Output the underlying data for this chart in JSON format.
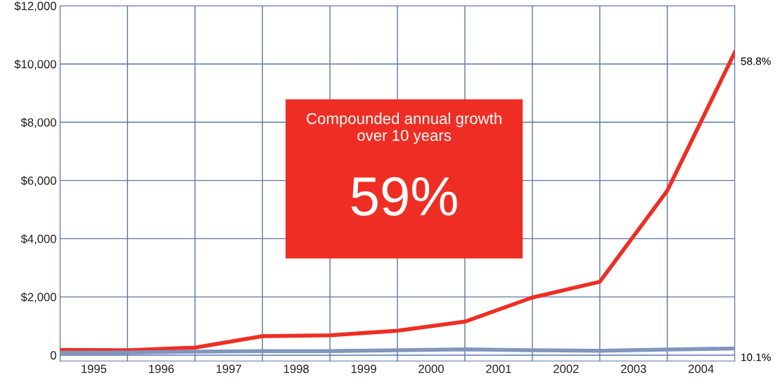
{
  "chart_data": {
    "type": "line",
    "xlim": [
      1995,
      2005
    ],
    "xticks": [
      {
        "value": 1995,
        "label": null
      },
      {
        "value": 1995.5,
        "label": "1995"
      },
      {
        "value": 1996,
        "label": null
      },
      {
        "value": 1996.5,
        "label": "1996"
      },
      {
        "value": 1997,
        "label": null
      },
      {
        "value": 1997.5,
        "label": "1997"
      },
      {
        "value": 1998,
        "label": null
      },
      {
        "value": 1998.5,
        "label": "1998"
      },
      {
        "value": 1999,
        "label": null
      },
      {
        "value": 1999.5,
        "label": "1999"
      },
      {
        "value": 2000,
        "label": null
      },
      {
        "value": 2000.5,
        "label": "2000"
      },
      {
        "value": 2001,
        "label": null
      },
      {
        "value": 2001.5,
        "label": "2001"
      },
      {
        "value": 2002,
        "label": null
      },
      {
        "value": 2002.5,
        "label": "2002"
      },
      {
        "value": 2003,
        "label": null
      },
      {
        "value": 2003.5,
        "label": "2003"
      },
      {
        "value": 2004,
        "label": null
      },
      {
        "value": 2004.5,
        "label": "2004"
      },
      {
        "value": 2005,
        "label": null
      }
    ],
    "ylim": [
      -200,
      12000
    ],
    "yticks": [
      0,
      {
        "value": 2000,
        "label": "$2,000"
      },
      {
        "value": 4000,
        "label": "$4,000"
      },
      {
        "value": 6000,
        "label": "$6,000"
      },
      {
        "value": 8000,
        "label": "$8,000"
      },
      {
        "value": 10000,
        "label": "$10,000"
      },
      {
        "value": 12000,
        "label": "$12,000"
      }
    ],
    "grid": true,
    "legend": false,
    "marker": "none",
    "line_style": "solid",
    "series": [
      {
        "color": "#ee2e24",
        "x": [
          1995,
          1996,
          1997,
          1998,
          1999,
          2000,
          2001,
          2002,
          2003,
          2004,
          2005
        ],
        "values": [
          180,
          170,
          260,
          650,
          680,
          840,
          1150,
          1980,
          2520,
          5650,
          10400
        ]
      },
      {
        "color": "#8196bd",
        "x": [
          1995,
          1996,
          1997,
          1998,
          1999,
          2000,
          2001,
          2002,
          2003,
          2004,
          2005
        ],
        "values": [
          80,
          90,
          120,
          140,
          140,
          170,
          200,
          170,
          150,
          190,
          230
        ]
      }
    ],
    "annotations": [
      {
        "text": "58.8%",
        "x": 2005,
        "y": 10400
      },
      {
        "text": "10.1%",
        "x": 2005,
        "y": 230
      },
      "Compounded annual growth\nover 10 years",
      "59%"
    ]
  }
}
